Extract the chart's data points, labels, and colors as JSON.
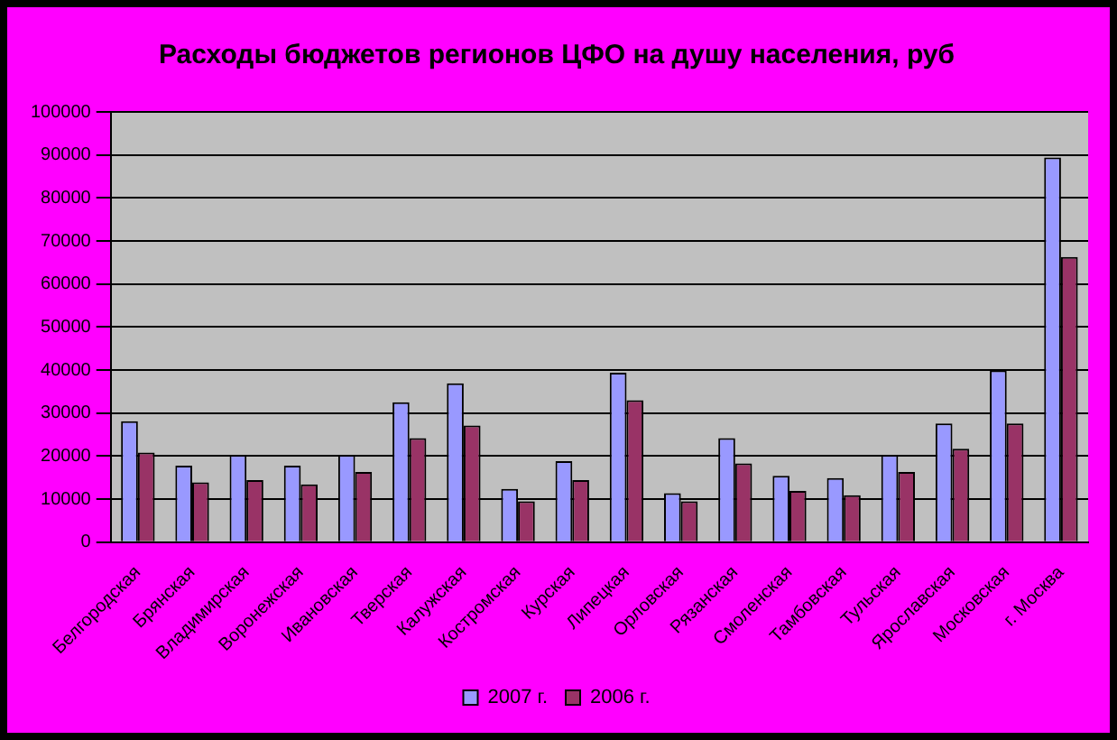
{
  "chart_data": {
    "type": "bar",
    "title": "Расходы бюджетов регионов ЦФО на душу населения, руб",
    "categories": [
      "Белгородская",
      "Брянская",
      "Владимирская",
      "Воронежская",
      "Ивановская",
      "Тверская",
      "Калужская",
      "Костромская",
      "Курская",
      "Липецкая",
      "Орловская",
      "Рязанская",
      "Смоленская",
      "Тамбовская",
      "Тульская",
      "Ярославская",
      "Московская",
      "г. Москва"
    ],
    "series": [
      {
        "name": "2007 г.",
        "color": "#9999ff",
        "values": [
          28100,
          17800,
          20300,
          17800,
          20300,
          32500,
          36900,
          12400,
          18800,
          39400,
          11400,
          24200,
          15400,
          14900,
          20300,
          27600,
          39900,
          89400
        ]
      },
      {
        "name": "2006 г.",
        "color": "#993366",
        "values": [
          20800,
          13900,
          14400,
          13400,
          16300,
          24200,
          27100,
          9500,
          14400,
          33000,
          9500,
          18300,
          11900,
          10900,
          16300,
          21700,
          27600,
          66300
        ]
      }
    ],
    "ylim": [
      0,
      100000
    ],
    "yticks": [
      0,
      10000,
      20000,
      30000,
      40000,
      50000,
      60000,
      70000,
      80000,
      90000,
      100000
    ],
    "grid": "y",
    "legend": "bottom"
  }
}
